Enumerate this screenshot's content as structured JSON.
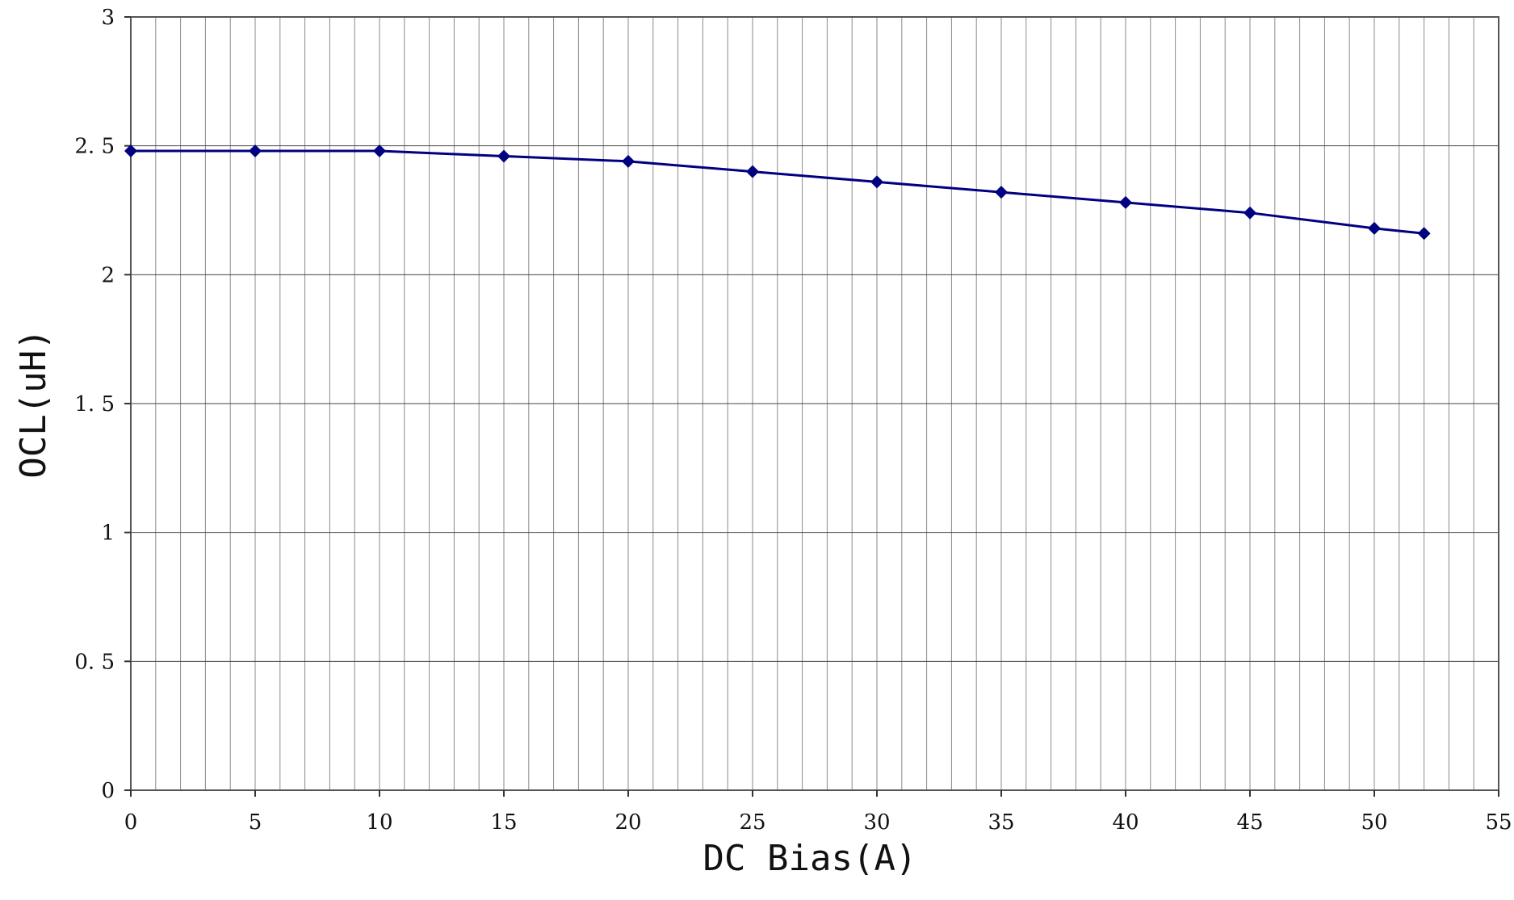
{
  "chart_data": {
    "type": "line",
    "title": "",
    "xlabel": "DC Bias(A)",
    "ylabel": "OCL(uH)",
    "xlim": [
      0,
      55
    ],
    "ylim": [
      0,
      3
    ],
    "x_ticks": [
      0,
      5,
      10,
      15,
      20,
      25,
      30,
      35,
      40,
      45,
      50,
      55
    ],
    "x_tick_labels": [
      "0",
      "5",
      "10",
      "15",
      "20",
      "25",
      "30",
      "35",
      "40",
      "45",
      "50",
      "55"
    ],
    "y_ticks": [
      0,
      0.5,
      1,
      1.5,
      2,
      2.5,
      3
    ],
    "y_tick_labels": [
      "0",
      "0. 5",
      "1",
      "1. 5",
      "2",
      "2. 5",
      "3"
    ],
    "x_minor_grid_step": 1,
    "grid": true,
    "legend": "none",
    "line_color": "#000080",
    "marker": "diamond",
    "series": [
      {
        "x": [
          0,
          5,
          10,
          15,
          20,
          25,
          30,
          35,
          40,
          45,
          50,
          52
        ],
        "y": [
          2.48,
          2.48,
          2.48,
          2.46,
          2.44,
          2.4,
          2.36,
          2.32,
          2.28,
          2.24,
          2.18,
          2.16
        ]
      }
    ]
  }
}
